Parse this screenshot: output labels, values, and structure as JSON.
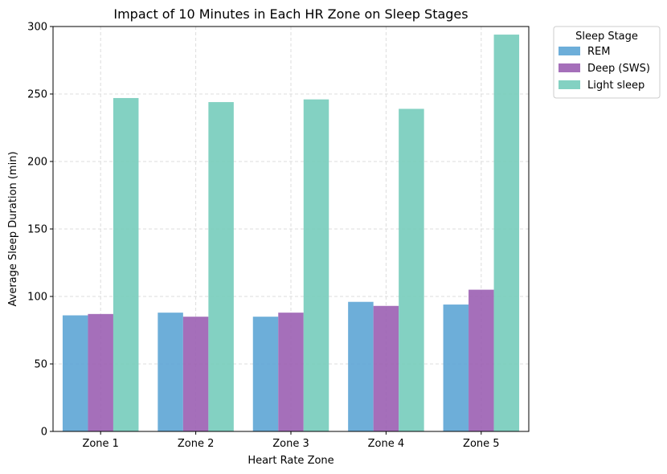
{
  "chart_data": {
    "type": "bar",
    "title": "Impact of 10 Minutes in Each HR Zone on Sleep Stages",
    "xlabel": "Heart Rate Zone",
    "ylabel": "Average Sleep Duration (min)",
    "ylim": [
      0,
      300
    ],
    "yticks": [
      0,
      50,
      100,
      150,
      200,
      250,
      300
    ],
    "grid": true,
    "legend_title": "Sleep Stage",
    "legend_position": "outside-top-right",
    "categories": [
      "Zone 1",
      "Zone 2",
      "Zone 3",
      "Zone 4",
      "Zone 5"
    ],
    "series": [
      {
        "name": "REM",
        "color": "#5DA5D5",
        "values": [
          86,
          88,
          85,
          96,
          94
        ]
      },
      {
        "name": "Deep (SWS)",
        "color": "#9B5FB3",
        "values": [
          87,
          85,
          88,
          93,
          105
        ]
      },
      {
        "name": "Light sleep",
        "color": "#76CCBB",
        "values": [
          247,
          244,
          246,
          239,
          294
        ]
      }
    ]
  }
}
